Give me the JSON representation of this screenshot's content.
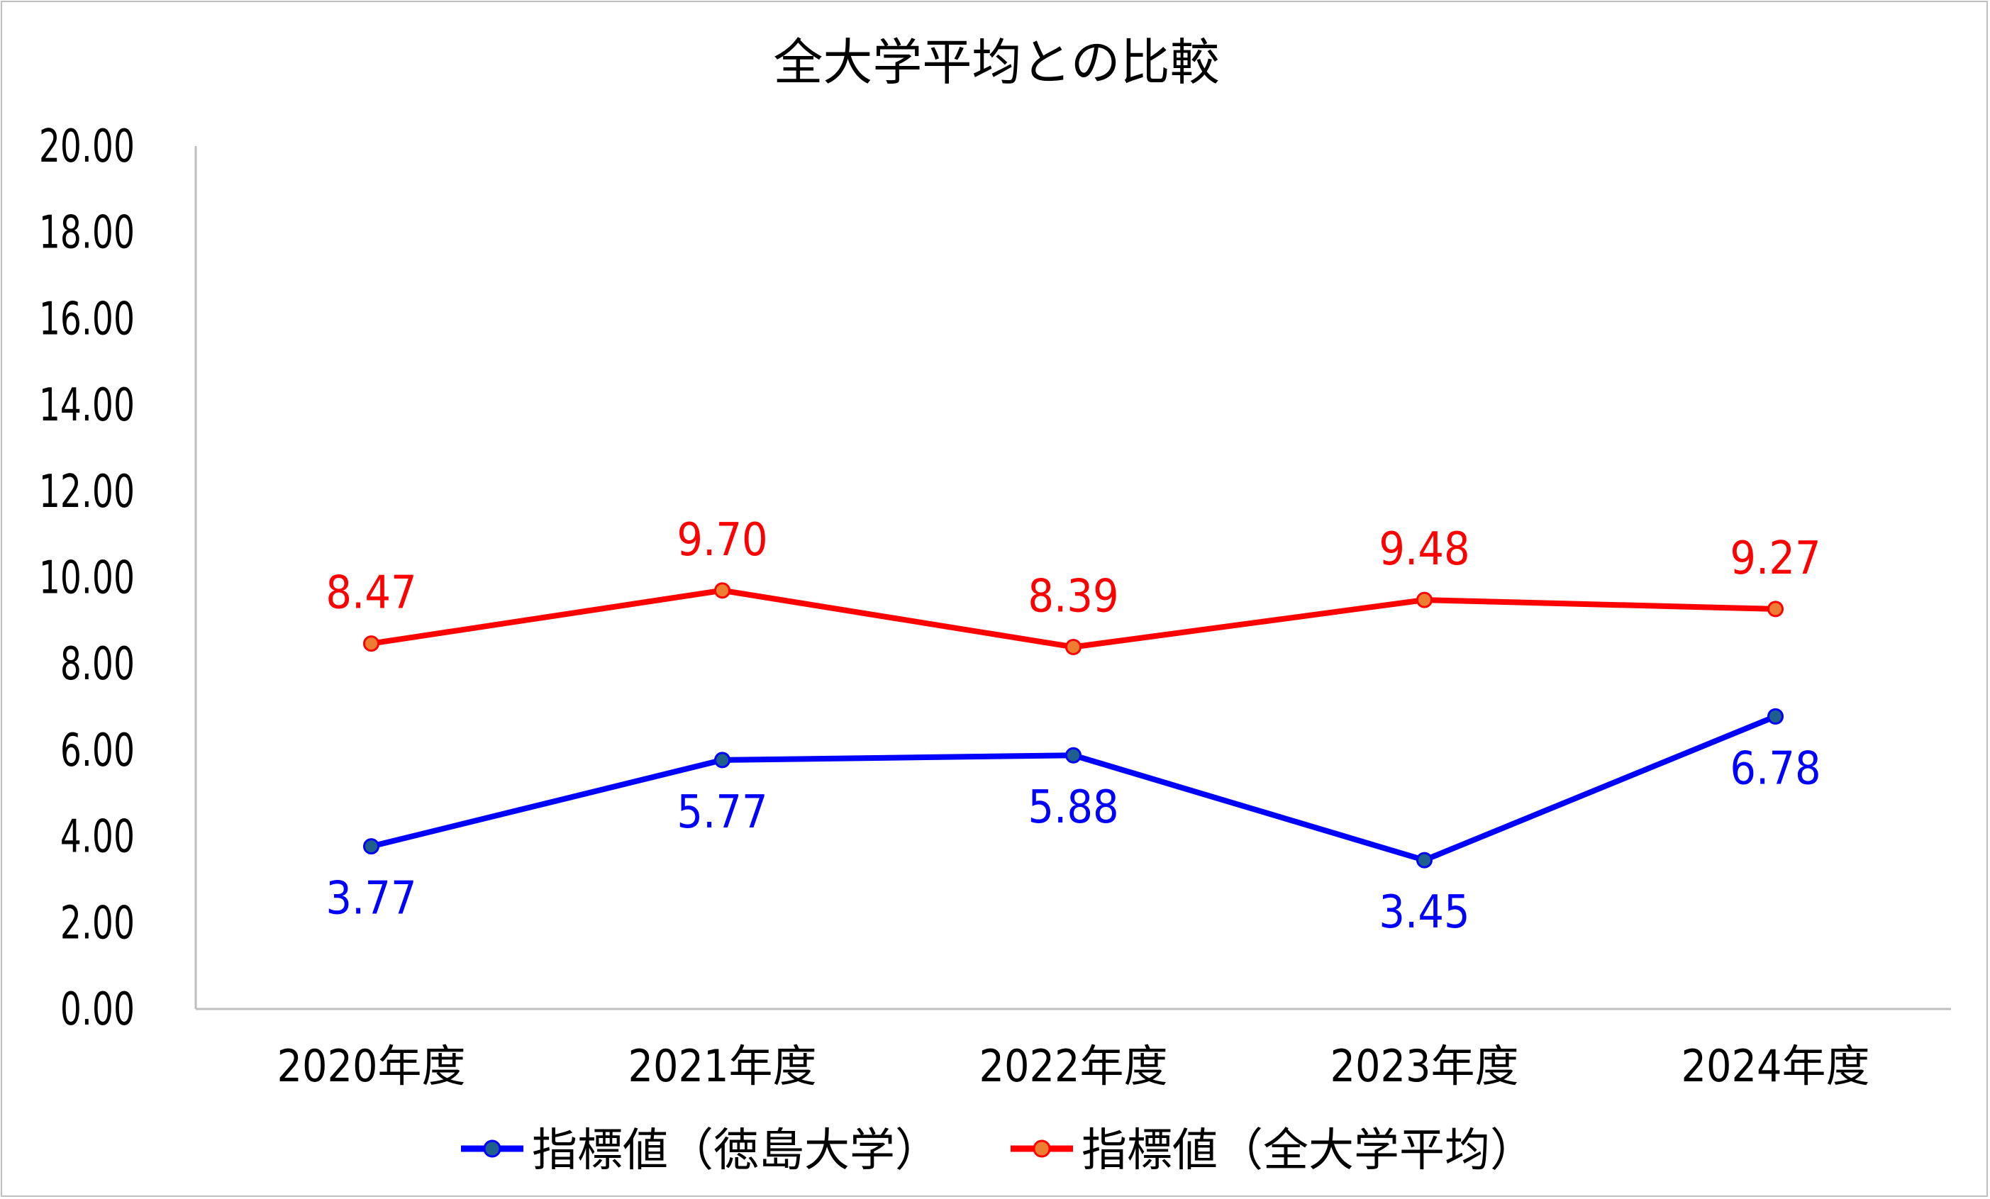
{
  "chart_data": {
    "type": "line",
    "title": "全大学平均との比較",
    "categories": [
      "2020年度",
      "2021年度",
      "2022年度",
      "2023年度",
      "2024年度"
    ],
    "ylim": [
      0,
      20
    ],
    "yticks": [
      "0.00",
      "2.00",
      "4.00",
      "6.00",
      "8.00",
      "10.00",
      "12.00",
      "14.00",
      "16.00",
      "18.00",
      "20.00"
    ],
    "grid": false,
    "legend_position": "bottom",
    "series": [
      {
        "name": "指標値（徳島大学）",
        "values": [
          3.77,
          5.77,
          5.88,
          3.45,
          6.78
        ],
        "labels": [
          "3.77",
          "5.77",
          "5.88",
          "3.45",
          "6.78"
        ],
        "line_color": "#0000ff",
        "marker_color": "#1f5f8b",
        "label_position": "below"
      },
      {
        "name": "指標値（全大学平均）",
        "values": [
          8.47,
          9.7,
          8.39,
          9.48,
          9.27
        ],
        "labels": [
          "8.47",
          "9.70",
          "8.39",
          "9.48",
          "9.27"
        ],
        "line_color": "#ff0000",
        "marker_color": "#ed7d31",
        "label_position": "above"
      }
    ]
  }
}
